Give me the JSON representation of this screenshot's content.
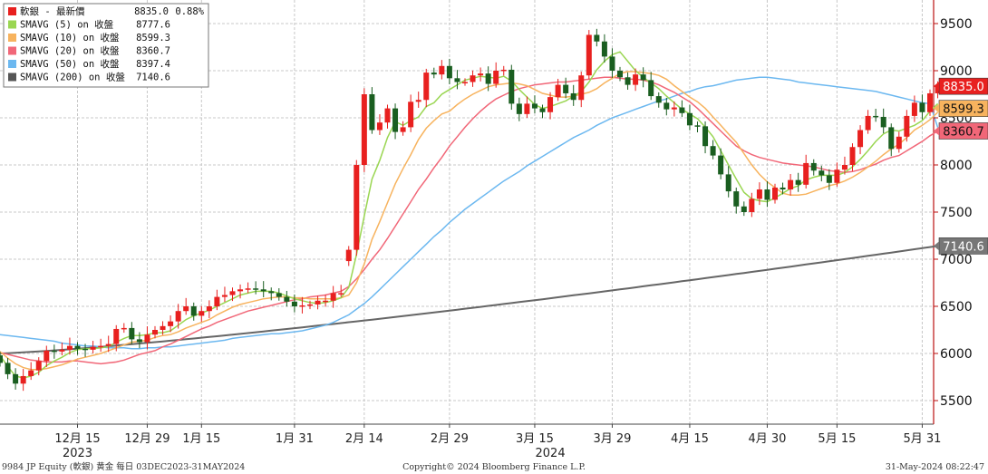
{
  "chart_data": {
    "type": "candlestick",
    "ylim": [
      5250,
      9750
    ],
    "y_ticks": [
      5500,
      6000,
      6500,
      7000,
      7500,
      8000,
      8500,
      9000,
      9500
    ],
    "x_ticks": [
      {
        "label": "12月 15",
        "i": 10
      },
      {
        "label": "12月 29",
        "i": 19
      },
      {
        "label": "1月 15",
        "i": 26
      },
      {
        "label": "1月 31",
        "i": 38
      },
      {
        "label": "2月 14",
        "i": 47
      },
      {
        "label": "2月 29",
        "i": 58
      },
      {
        "label": "3月 15",
        "i": 69
      },
      {
        "label": "3月 29",
        "i": 79
      },
      {
        "label": "4月 15",
        "i": 89
      },
      {
        "label": "4月 30",
        "i": 99
      },
      {
        "label": "5月 15",
        "i": 108
      },
      {
        "label": "5月 31",
        "i": 119
      }
    ],
    "year_labels": [
      {
        "label": "2023",
        "i": 10
      },
      {
        "label": "2024",
        "i": 71
      }
    ],
    "legend": [
      {
        "label": "軟銀 - 最新價",
        "value": "8835.0",
        "change": "0.88%",
        "color": "#e8201f"
      },
      {
        "label": "SMAVG (5)  on 收盤",
        "value": "8777.6",
        "color": "#9ad652"
      },
      {
        "label": "SMAVG (10)  on 收盤",
        "value": "8599.3",
        "color": "#f7b35e"
      },
      {
        "label": "SMAVG (20)  on 收盤",
        "value": "8360.7",
        "color": "#f16778"
      },
      {
        "label": "SMAVG (50)  on 收盤",
        "value": "8397.4",
        "color": "#6cb8f0"
      },
      {
        "label": "SMAVG (200)  on 收盤",
        "value": "7140.6",
        "color": "#555555"
      }
    ],
    "badges": [
      {
        "value": "8835.0",
        "y": 8835.0,
        "bg": "#e8201f",
        "fg": "#ffffff"
      },
      {
        "value": "8599.3",
        "y": 8599.3,
        "bg": "#f7b35e",
        "fg": "#111111"
      },
      {
        "value": "8360.7",
        "y": 8360.7,
        "bg": "#f16778",
        "fg": "#111111"
      },
      {
        "value": "7140.6",
        "y": 7140.6,
        "bg": "#777777",
        "fg": "#ffffff"
      }
    ],
    "colors": {
      "up": "#e8201f",
      "down": "#1a5e20",
      "grid": "#c8c8c8"
    },
    "series": {
      "close": [
        5900,
        5780,
        5680,
        5760,
        5820,
        5920,
        6030,
        6020,
        6040,
        6080,
        6050,
        6040,
        6070,
        6080,
        6100,
        6260,
        6270,
        6150,
        6120,
        6200,
        6250,
        6290,
        6340,
        6450,
        6500,
        6400,
        6450,
        6500,
        6600,
        6620,
        6660,
        6680,
        6690,
        6680,
        6660,
        6640,
        6600,
        6550,
        6500,
        6510,
        6520,
        6560,
        6560,
        6640,
        6640,
        7100,
        8000,
        8750,
        8370,
        8450,
        8600,
        8350,
        8400,
        8670,
        8690,
        8980,
        8960,
        9050,
        8920,
        8880,
        8880,
        8950,
        8970,
        8860,
        9000,
        9010,
        8650,
        8540,
        8650,
        8600,
        8560,
        8720,
        8850,
        8760,
        8690,
        8950,
        9380,
        9310,
        9150,
        9000,
        8930,
        8850,
        8960,
        8900,
        8730,
        8660,
        8590,
        8610,
        8550,
        8420,
        8410,
        8200,
        8100,
        7900,
        7720,
        7560,
        7500,
        7640,
        7740,
        7630,
        7760,
        7740,
        7840,
        7790,
        8020,
        7940,
        7890,
        7810,
        7950,
        8000,
        8190,
        8370,
        8520,
        8510,
        8400,
        8170,
        8300,
        8520,
        8660,
        8560,
        8760,
        8835
      ],
      "open": [
        5980,
        5900,
        5780,
        5680,
        5760,
        5820,
        5920,
        6030,
        6020,
        6040,
        6080,
        6050,
        6040,
        6070,
        6080,
        6100,
        6260,
        6270,
        6150,
        6120,
        6200,
        6250,
        6290,
        6340,
        6450,
        6500,
        6400,
        6450,
        6500,
        6600,
        6620,
        6660,
        6680,
        6690,
        6680,
        6660,
        6640,
        6600,
        6550,
        6500,
        6510,
        6520,
        6560,
        6560,
        6640,
        6980,
        7100,
        8000,
        8750,
        8370,
        8450,
        8600,
        8350,
        8400,
        8670,
        8690,
        8980,
        8960,
        9050,
        8920,
        8880,
        8880,
        8950,
        8970,
        8860,
        9000,
        9010,
        8650,
        8540,
        8650,
        8600,
        8560,
        8720,
        8850,
        8760,
        8690,
        8950,
        9380,
        9310,
        9150,
        9000,
        8930,
        8850,
        8960,
        8900,
        8730,
        8660,
        8590,
        8610,
        8550,
        8420,
        8410,
        8200,
        8100,
        7900,
        7720,
        7560,
        7500,
        7640,
        7740,
        7630,
        7760,
        7740,
        7840,
        7790,
        8020,
        7940,
        7890,
        7810,
        7950,
        8000,
        8190,
        8370,
        8520,
        8510,
        8400,
        8170,
        8300,
        8520,
        8660,
        8560,
        8760
      ],
      "sma5": [
        5980,
        5860,
        5760,
        5740,
        5760,
        5800,
        5870,
        5920,
        5960,
        6010,
        6040,
        6050,
        6050,
        6060,
        6070,
        6120,
        6160,
        6190,
        6190,
        6200,
        6220,
        6220,
        6240,
        6300,
        6360,
        6400,
        6430,
        6460,
        6500,
        6540,
        6580,
        6620,
        6640,
        6660,
        6660,
        6660,
        6640,
        6610,
        6580,
        6560,
        6540,
        6530,
        6540,
        6560,
        6590,
        6700,
        7050,
        7460,
        7850,
        8050,
        8290,
        8460,
        8420,
        8470,
        8510,
        8620,
        8660,
        8750,
        8800,
        8850,
        8900,
        8920,
        8940,
        8930,
        8920,
        8940,
        8890,
        8800,
        8720,
        8640,
        8600,
        8620,
        8650,
        8680,
        8730,
        8780,
        8880,
        9010,
        9100,
        9170,
        9200,
        9100,
        9000,
        8930,
        8870,
        8810,
        8730,
        8660,
        8590,
        8540,
        8490,
        8400,
        8300,
        8150,
        8000,
        7850,
        7710,
        7640,
        7620,
        7610,
        7650,
        7700,
        7750,
        7780,
        7840,
        7870,
        7890,
        7890,
        7890,
        7920,
        7980,
        8060,
        8150,
        8250,
        8330,
        8370,
        8360,
        8390,
        8420,
        8470,
        8570,
        8650
      ],
      "sma10": [
        6020,
        5950,
        5890,
        5850,
        5830,
        5830,
        5840,
        5860,
        5880,
        5910,
        5940,
        5960,
        5980,
        6000,
        6030,
        6060,
        6090,
        6120,
        6130,
        6140,
        6170,
        6190,
        6200,
        6230,
        6270,
        6300,
        6330,
        6360,
        6410,
        6450,
        6490,
        6520,
        6540,
        6560,
        6580,
        6590,
        6600,
        6600,
        6590,
        6590,
        6580,
        6580,
        6580,
        6580,
        6590,
        6620,
        6750,
        6950,
        7210,
        7400,
        7600,
        7800,
        7960,
        8110,
        8270,
        8390,
        8470,
        8540,
        8570,
        8640,
        8700,
        8750,
        8790,
        8830,
        8850,
        8860,
        8870,
        8860,
        8840,
        8800,
        8760,
        8740,
        8720,
        8720,
        8730,
        8750,
        8770,
        8810,
        8870,
        8920,
        8970,
        8990,
        8990,
        8980,
        8970,
        8950,
        8910,
        8840,
        8780,
        8720,
        8670,
        8600,
        8510,
        8420,
        8330,
        8240,
        8120,
        8000,
        7900,
        7820,
        7760,
        7700,
        7680,
        7680,
        7690,
        7720,
        7750,
        7780,
        7800,
        7830,
        7870,
        7920,
        7980,
        8040,
        8110,
        8170,
        8220,
        8290,
        8370,
        8420,
        8480,
        8560
      ],
      "sma20": [
        6010,
        5990,
        5970,
        5950,
        5930,
        5920,
        5910,
        5910,
        5910,
        5920,
        5920,
        5910,
        5900,
        5890,
        5900,
        5910,
        5930,
        5960,
        5990,
        6010,
        6030,
        6070,
        6100,
        6140,
        6180,
        6220,
        6260,
        6290,
        6330,
        6360,
        6390,
        6420,
        6450,
        6470,
        6490,
        6510,
        6530,
        6550,
        6570,
        6580,
        6600,
        6610,
        6620,
        6640,
        6660,
        6710,
        6790,
        6890,
        7000,
        7100,
        7220,
        7350,
        7480,
        7610,
        7740,
        7850,
        7970,
        8080,
        8200,
        8300,
        8400,
        8490,
        8570,
        8640,
        8700,
        8740,
        8780,
        8810,
        8830,
        8850,
        8860,
        8870,
        8880,
        8880,
        8890,
        8900,
        8910,
        8920,
        8930,
        8930,
        8920,
        8910,
        8910,
        8900,
        8880,
        8850,
        8810,
        8770,
        8720,
        8670,
        8600,
        8520,
        8440,
        8360,
        8280,
        8200,
        8150,
        8110,
        8080,
        8060,
        8040,
        8020,
        8010,
        8000,
        7990,
        7980,
        7960,
        7940,
        7930,
        7920,
        7930,
        7950,
        7980,
        8010,
        8050,
        8080,
        8100,
        8150,
        8200,
        8250,
        8310,
        8360
      ],
      "sma50": [
        6200,
        6190,
        6180,
        6170,
        6160,
        6150,
        6140,
        6130,
        6110,
        6100,
        6090,
        6080,
        6080,
        6070,
        6060,
        6060,
        6060,
        6050,
        6050,
        6060,
        6060,
        6070,
        6070,
        6080,
        6090,
        6100,
        6110,
        6120,
        6130,
        6140,
        6160,
        6170,
        6180,
        6190,
        6200,
        6210,
        6210,
        6220,
        6230,
        6240,
        6260,
        6280,
        6300,
        6330,
        6370,
        6410,
        6470,
        6530,
        6600,
        6680,
        6760,
        6840,
        6920,
        7000,
        7080,
        7160,
        7240,
        7310,
        7390,
        7460,
        7530,
        7590,
        7650,
        7710,
        7770,
        7830,
        7880,
        7930,
        7990,
        8040,
        8090,
        8140,
        8190,
        8240,
        8290,
        8330,
        8370,
        8420,
        8460,
        8500,
        8530,
        8560,
        8590,
        8620,
        8650,
        8680,
        8700,
        8730,
        8760,
        8780,
        8810,
        8830,
        8840,
        8860,
        8880,
        8900,
        8910,
        8920,
        8930,
        8930,
        8920,
        8910,
        8900,
        8880,
        8870,
        8860,
        8850,
        8840,
        8830,
        8820,
        8810,
        8800,
        8790,
        8780,
        8760,
        8740,
        8720,
        8700,
        8680,
        8660,
        8650,
        8397.4
      ]
    }
  },
  "footer": {
    "left": "9984 JP Equity (軟銀) 黄金  每日 03DEC2023-31MAY2024",
    "center": "Copyright© 2024 Bloomberg Finance L.P.",
    "right": "31-May-2024 08:22:47"
  }
}
